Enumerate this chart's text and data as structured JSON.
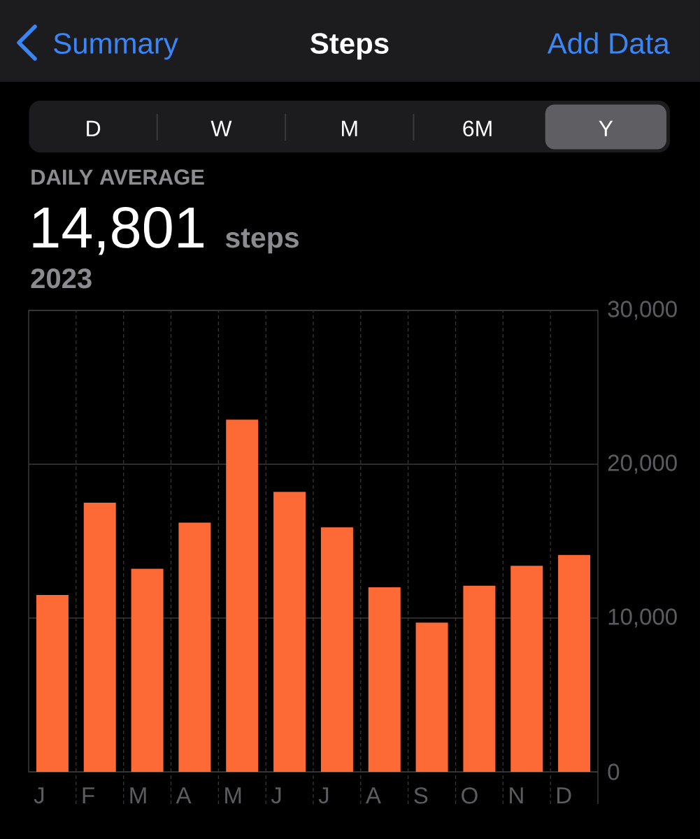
{
  "chart_data": {
    "type": "bar",
    "title": "Steps",
    "annotations": [
      "Summary",
      "Add Data",
      "D",
      "W",
      "M",
      "6M",
      "Y",
      "DAILY AVERAGE",
      "14,801",
      "steps",
      "2023"
    ],
    "categories": [
      "J",
      "F",
      "M",
      "A",
      "M",
      "J",
      "J",
      "A",
      "S",
      "O",
      "N",
      "D"
    ],
    "values": [
      11500,
      17500,
      13200,
      16200,
      22900,
      18200,
      15900,
      12000,
      9700,
      12100,
      13400,
      14100
    ],
    "color": "#fe6a35",
    "ylim": [
      0,
      30000
    ],
    "yticks": [
      0,
      {
        "value": 10000,
        "label": "10,000"
      },
      {
        "value": 20000,
        "label": "20,000"
      },
      {
        "value": 30000,
        "label": "30,000"
      }
    ],
    "grid": true
  }
}
